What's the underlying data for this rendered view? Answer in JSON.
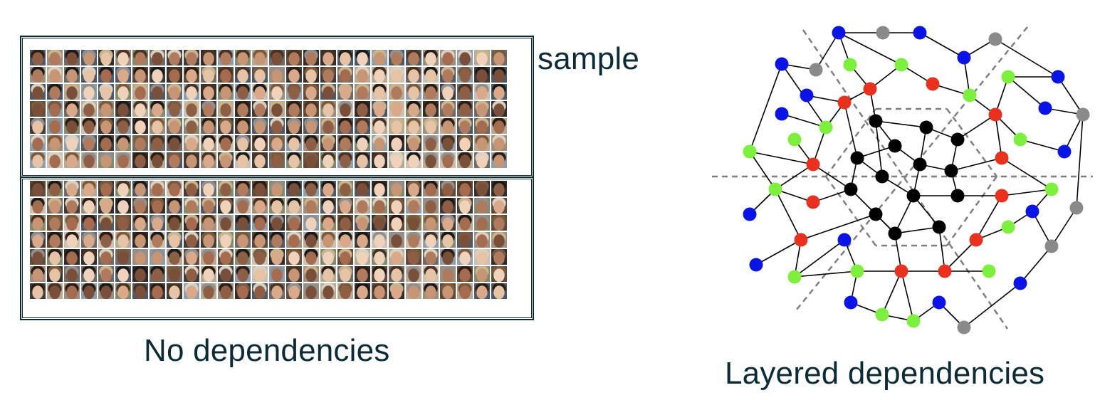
{
  "labels": {
    "sample": "sample",
    "no_dependencies": "No dependencies",
    "layered_dependencies": "Layered dependencies"
  },
  "colors": {
    "blue": "#0a14e6",
    "green": "#7cf03c",
    "red": "#e8321e",
    "black": "#000000",
    "gray": "#8a8a8a",
    "frame": "#0d2a33",
    "text": "#0b2b36"
  },
  "face_grids": [
    {
      "name": "top-sample",
      "rows": 7,
      "cols": 28
    },
    {
      "name": "bottom-sample",
      "rows": 7,
      "cols": 28
    }
  ]
}
